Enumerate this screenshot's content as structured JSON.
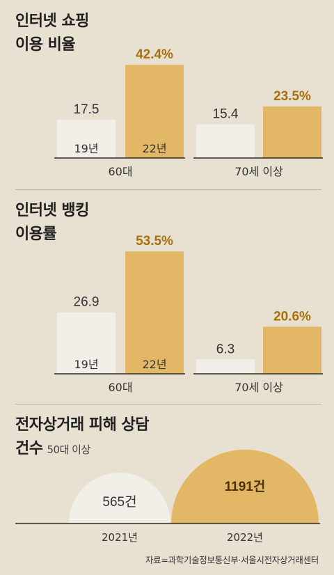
{
  "colors": {
    "bar_2019": "#f2efe8",
    "bar_2022": "#e2b866",
    "label_2022": "#a86f0d",
    "label_2019": "#333333",
    "axis": "#2a2a2a",
    "semicircle_2021": "#f2efe8",
    "semicircle_2022": "#e2b866"
  },
  "sections": [
    {
      "title_line1": "인터넷 쇼핑",
      "title_line2": "이용 비율",
      "chart_data": {
        "type": "bar",
        "categories": [
          "60대",
          "70세 이상"
        ],
        "series": [
          {
            "name": "19년",
            "values": [
              17.5,
              15.4
            ]
          },
          {
            "name": "22년",
            "values": [
              42.4,
              23.5
            ]
          }
        ],
        "value_labels": [
          [
            "17.5",
            "42.4%"
          ],
          [
            "15.4",
            "23.5%"
          ]
        ],
        "ylim": [
          0,
          45
        ]
      }
    },
    {
      "title_line1": "인터넷 뱅킹",
      "title_line2": "이용률",
      "chart_data": {
        "type": "bar",
        "categories": [
          "60대",
          "70세 이상"
        ],
        "series": [
          {
            "name": "19년",
            "values": [
              26.9,
              6.3
            ]
          },
          {
            "name": "22년",
            "values": [
              53.5,
              20.6
            ]
          }
        ],
        "value_labels": [
          [
            "26.9",
            "53.5%"
          ],
          [
            "6.3",
            "20.6%"
          ]
        ],
        "ylim": [
          0,
          56
        ]
      }
    },
    {
      "title_line1": "전자상거래 피해 상담",
      "title_line2": "건수",
      "subtitle": "50대 이상",
      "chart_data": {
        "type": "area",
        "categories": [
          "2021년",
          "2022년"
        ],
        "values": [
          565,
          1191
        ],
        "value_labels": [
          "565건",
          "1191건"
        ]
      }
    }
  ],
  "source": "자료=과학기술정보통신부·서울시전자상거래센터"
}
